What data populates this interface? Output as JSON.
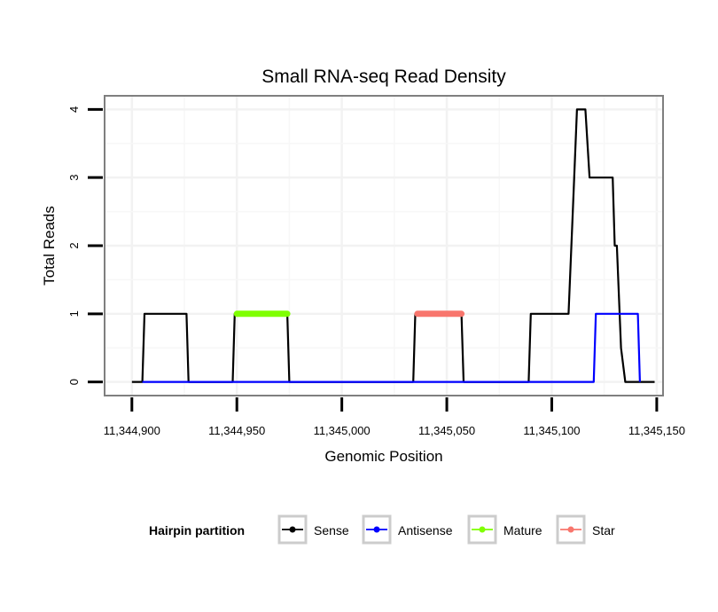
{
  "chart_data": {
    "type": "line",
    "title": "Small RNA-seq Read Density",
    "xlabel": "Genomic Position",
    "ylabel": "Total Reads",
    "xlim": [
      11344887,
      11345153
    ],
    "ylim": [
      -0.2,
      4.2
    ],
    "x_ticks": [
      11344900,
      11344950,
      11345000,
      11345050,
      11345100,
      11345150
    ],
    "x_tick_labels": [
      "11,344,900",
      "11,344,950",
      "11,345,000",
      "11,345,050",
      "11,345,100",
      "11,345,150"
    ],
    "y_ticks": [
      0,
      1,
      2,
      3,
      4
    ],
    "y_tick_labels": [
      "0",
      "1",
      "2",
      "3",
      "4"
    ],
    "grid": true,
    "legend": {
      "title": "Hairpin partition",
      "position": "bottom",
      "entries": [
        "Sense",
        "Antisense",
        "Mature",
        "Star"
      ]
    },
    "series": [
      {
        "name": "Sense",
        "color": "#000000",
        "x": [
          11344900,
          11344905,
          11344906,
          11344926,
          11344927,
          11344948,
          11344949,
          11344974,
          11344975,
          11345034,
          11345035,
          11345057,
          11345058,
          11345089,
          11345090,
          11345108,
          11345110,
          11345112,
          11345116,
          11345118,
          11345129,
          11345130,
          11345131,
          11345133,
          11345135,
          11345149
        ],
        "values": [
          0,
          0,
          1,
          1,
          0,
          0,
          1,
          1,
          0,
          0,
          1,
          1,
          0,
          0,
          1,
          1,
          2.5,
          4,
          4,
          3,
          3,
          2,
          2,
          0.5,
          0,
          0
        ]
      },
      {
        "name": "Antisense",
        "color": "#0000ff",
        "x": [
          11344905,
          11345120,
          11345121,
          11345141,
          11345142
        ],
        "values": [
          0,
          0,
          1,
          1,
          0
        ]
      },
      {
        "name": "Mature",
        "color": "#7fff00",
        "x": [
          11344950,
          11344974
        ],
        "values": [
          1,
          1
        ]
      },
      {
        "name": "Star",
        "color": "#f8766d",
        "x": [
          11345036,
          11345057
        ],
        "values": [
          1,
          1
        ]
      }
    ]
  }
}
